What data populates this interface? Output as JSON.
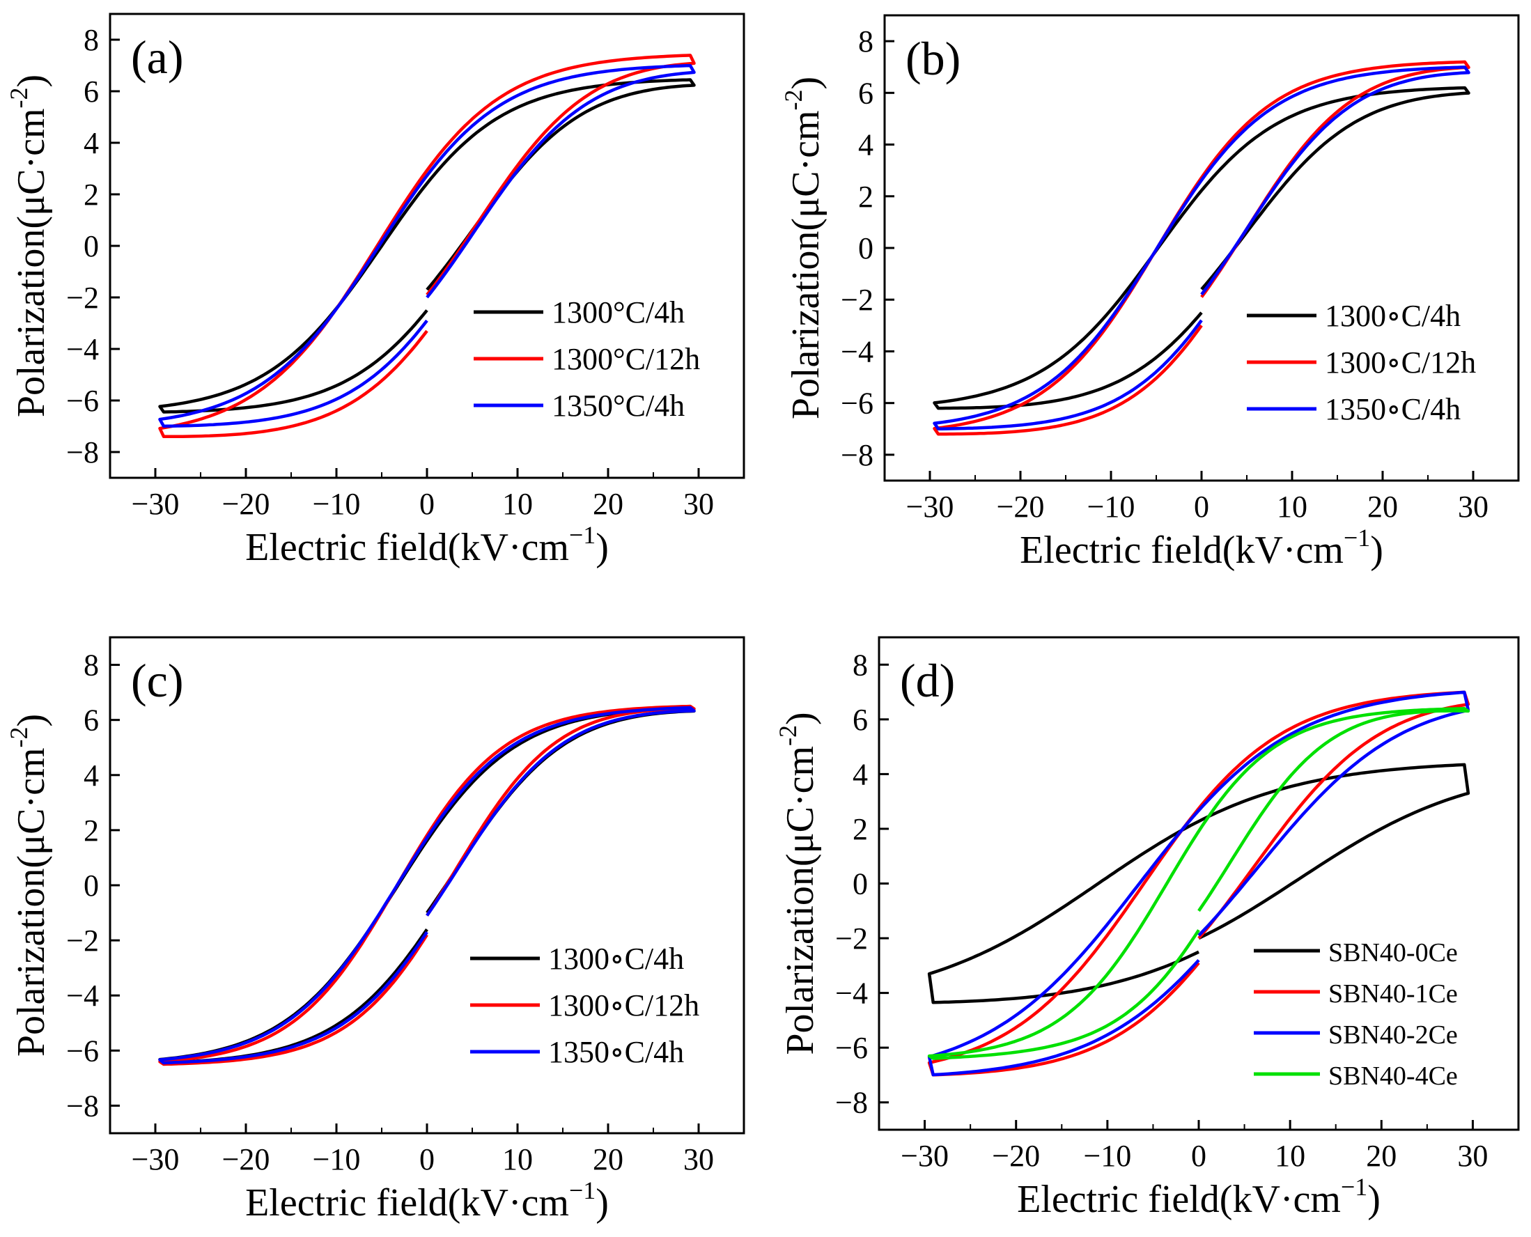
{
  "figure": {
    "xaxis_title": {
      "main": "Electric field(kV·cm",
      "sup": "−1",
      "close": ")"
    },
    "yaxis_title": {
      "main": "Polarization(μC·cm",
      "sup": "-2",
      "close": ")"
    }
  },
  "chart_data": [
    {
      "type": "line",
      "panel": "(a)",
      "xlabel": "Electric field(kV·cm−1)",
      "ylabel": "Polarization(μC·cm-2)",
      "xlim": [
        -35,
        35
      ],
      "ylim": [
        -9,
        9
      ],
      "xticks": [
        -30,
        -20,
        -10,
        0,
        10,
        20,
        30
      ],
      "yticks": [
        -8,
        -6,
        -4,
        -2,
        0,
        2,
        4,
        6,
        8
      ],
      "legend_position": "lower-right",
      "series": [
        {
          "name": "1300°C/4h",
          "color": "#000000",
          "loop": {
            "Pmax": 6.45,
            "Pmin": -6.45,
            "Ec": 5.0,
            "Pr": 2.4,
            "Pstart": -1.7,
            "Pend": -2.5
          }
        },
        {
          "name": "1300°C/12h",
          "color": "#ff0000",
          "loop": {
            "Pmax": 7.4,
            "Pmin": -7.4,
            "Ec": 5.5,
            "Pr": 2.9,
            "Pstart": -1.9,
            "Pend": -3.3
          }
        },
        {
          "name": "1350°C/4h",
          "color": "#0000ff",
          "loop": {
            "Pmax": 7.0,
            "Pmin": -7.0,
            "Ec": 5.3,
            "Pr": 2.7,
            "Pstart": -2.0,
            "Pend": -2.9
          }
        }
      ]
    },
    {
      "type": "line",
      "panel": "(b)",
      "xlabel": "Electric field(kV·cm−1)",
      "ylabel": "Polarization(μC·cm-2)",
      "xlim": [
        -35,
        35
      ],
      "ylim": [
        -9,
        9
      ],
      "xticks": [
        -30,
        -20,
        -10,
        0,
        10,
        20,
        30
      ],
      "yticks": [
        -8,
        -6,
        -4,
        -2,
        0,
        2,
        4,
        6,
        8
      ],
      "legend_position": "lower-right",
      "series": [
        {
          "name": "1300∘C/4h",
          "color": "#000000",
          "loop": {
            "Pmax": 6.2,
            "Pmin": -6.2,
            "Ec": 4.8,
            "Pr": 2.2,
            "Pstart": -1.6,
            "Pend": -2.5
          }
        },
        {
          "name": "1300∘C/12h",
          "color": "#ff0000",
          "loop": {
            "Pmax": 7.2,
            "Pmin": -7.2,
            "Ec": 4.9,
            "Pr": 2.7,
            "Pstart": -1.9,
            "Pend": -3.0
          }
        },
        {
          "name": "1350∘C/4h",
          "color": "#0000ff",
          "loop": {
            "Pmax": 7.0,
            "Pmin": -7.0,
            "Ec": 4.9,
            "Pr": 2.6,
            "Pstart": -1.8,
            "Pend": -2.8
          }
        }
      ]
    },
    {
      "type": "line",
      "panel": "(c)",
      "xlabel": "Electric field(kV·cm−1)",
      "ylabel": "Polarization(μC·cm-2)",
      "xlim": [
        -35,
        35
      ],
      "ylim": [
        -9,
        9
      ],
      "xticks": [
        -30,
        -20,
        -10,
        0,
        10,
        20,
        30
      ],
      "yticks": [
        -8,
        -6,
        -4,
        -2,
        0,
        2,
        4,
        6,
        8
      ],
      "legend_position": "lower-right",
      "series": [
        {
          "name": "1300∘C/4h",
          "color": "#000000",
          "loop": {
            "Pmax": 6.45,
            "Pmin": -6.45,
            "Ec": 3.2,
            "Pr": 1.6,
            "Pstart": -1.0,
            "Pend": -1.6
          }
        },
        {
          "name": "1300∘C/12h",
          "color": "#ff0000",
          "loop": {
            "Pmax": 6.5,
            "Pmin": -6.5,
            "Ec": 3.3,
            "Pr": 1.8,
            "Pstart": -1.1,
            "Pend": -1.8
          }
        },
        {
          "name": "1350∘C/4h",
          "color": "#0000ff",
          "loop": {
            "Pmax": 6.45,
            "Pmin": -6.45,
            "Ec": 3.3,
            "Pr": 1.7,
            "Pstart": -1.1,
            "Pend": -1.7
          }
        }
      ]
    },
    {
      "type": "line",
      "panel": "(d)",
      "xlabel": "Electric field(kV·cm−1)",
      "ylabel": "Polarization(μC·cm-2)",
      "xlim": [
        -35,
        35
      ],
      "ylim": [
        -9,
        9
      ],
      "xticks": [
        -30,
        -20,
        -10,
        0,
        10,
        20,
        30
      ],
      "yticks": [
        -8,
        -6,
        -4,
        -2,
        0,
        2,
        4,
        6,
        8
      ],
      "legend_position": "lower-right",
      "series": [
        {
          "name": "SBN40-0Ce",
          "color": "#000000",
          "loop": {
            "Pmax": 4.35,
            "Pmin": -4.35,
            "Ec": 11.0,
            "Pr": 2.2,
            "Pstart": -2.0,
            "Pend": -2.5
          }
        },
        {
          "name": "SBN40-1Ce",
          "color": "#ff0000",
          "loop": {
            "Pmax": 7.0,
            "Pmin": -7.0,
            "Ec": 6.0,
            "Pr": 2.7,
            "Pstart": -2.0,
            "Pend": -2.9
          }
        },
        {
          "name": "SBN40-2Ce",
          "color": "#0000ff",
          "loop": {
            "Pmax": 7.0,
            "Pmin": -7.0,
            "Ec": 6.5,
            "Pr": 2.6,
            "Pstart": -1.9,
            "Pend": -2.8
          }
        },
        {
          "name": "SBN40-4Ce",
          "color": "#00e000",
          "loop": {
            "Pmax": 6.4,
            "Pmin": -6.4,
            "Ec": 3.5,
            "Pr": 1.9,
            "Pstart": -1.0,
            "Pend": -1.7
          }
        }
      ]
    }
  ]
}
